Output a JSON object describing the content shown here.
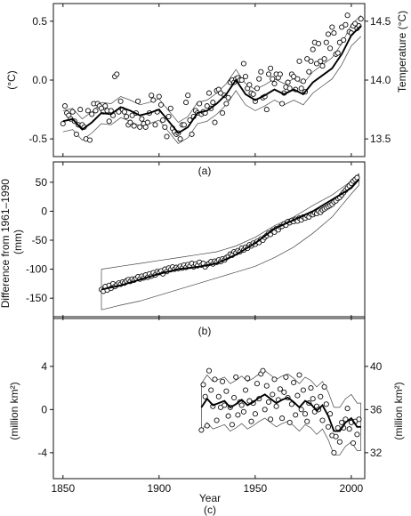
{
  "shared": {
    "xlabel": "Year",
    "xticks": [
      1850,
      1900,
      1950,
      2000
    ],
    "xlim": [
      1845,
      2007
    ]
  },
  "chart_data": [
    {
      "type": "scatter",
      "panel_label": "(a)",
      "ylabel": "(°C)",
      "ylabel_right": "Temperature (°C)",
      "ylim": [
        -0.65,
        0.65
      ],
      "yticks": [
        0.5,
        0.0,
        -0.5
      ],
      "ytick_labels": [
        "0.5",
        "0.0",
        "-0.5"
      ],
      "yticks_right": [
        14.5,
        14.0,
        13.5
      ],
      "ytick_right_labels": [
        "14.5",
        "14.0",
        "13.5"
      ],
      "right_offset": 14.0,
      "band_halfwidth": 0.09,
      "smooth_x": [
        1850,
        1855,
        1860,
        1865,
        1870,
        1875,
        1880,
        1885,
        1890,
        1895,
        1900,
        1905,
        1910,
        1915,
        1920,
        1925,
        1930,
        1935,
        1940,
        1945,
        1950,
        1955,
        1960,
        1965,
        1970,
        1975,
        1980,
        1985,
        1990,
        1995,
        2000,
        2005
      ],
      "smooth_y": [
        -0.35,
        -0.33,
        -0.42,
        -0.36,
        -0.28,
        -0.29,
        -0.23,
        -0.26,
        -0.3,
        -0.28,
        -0.25,
        -0.35,
        -0.45,
        -0.4,
        -0.28,
        -0.26,
        -0.2,
        -0.12,
        0.0,
        -0.12,
        -0.17,
        -0.13,
        -0.08,
        -0.12,
        -0.08,
        -0.12,
        -0.02,
        0.04,
        0.1,
        0.22,
        0.38,
        0.46
      ],
      "points_x": [
        1850,
        1851,
        1852,
        1853,
        1854,
        1855,
        1856,
        1857,
        1858,
        1859,
        1860,
        1861,
        1862,
        1863,
        1864,
        1865,
        1866,
        1867,
        1868,
        1869,
        1870,
        1871,
        1872,
        1873,
        1874,
        1875,
        1876,
        1877,
        1878,
        1879,
        1880,
        1881,
        1882,
        1883,
        1884,
        1885,
        1886,
        1887,
        1888,
        1889,
        1890,
        1891,
        1892,
        1893,
        1894,
        1895,
        1896,
        1897,
        1898,
        1899,
        1900,
        1901,
        1902,
        1903,
        1904,
        1905,
        1906,
        1907,
        1908,
        1909,
        1910,
        1911,
        1912,
        1913,
        1914,
        1915,
        1916,
        1917,
        1918,
        1919,
        1920,
        1921,
        1922,
        1923,
        1924,
        1925,
        1926,
        1927,
        1928,
        1929,
        1930,
        1931,
        1932,
        1933,
        1934,
        1935,
        1936,
        1937,
        1938,
        1939,
        1940,
        1941,
        1942,
        1943,
        1944,
        1945,
        1946,
        1947,
        1948,
        1949,
        1950,
        1951,
        1952,
        1953,
        1954,
        1955,
        1956,
        1957,
        1958,
        1959,
        1960,
        1961,
        1962,
        1963,
        1964,
        1965,
        1966,
        1967,
        1968,
        1969,
        1970,
        1971,
        1972,
        1973,
        1974,
        1975,
        1976,
        1977,
        1978,
        1979,
        1980,
        1981,
        1982,
        1983,
        1984,
        1985,
        1986,
        1987,
        1988,
        1989,
        1990,
        1991,
        1992,
        1993,
        1994,
        1995,
        1996,
        1997,
        1998,
        1999,
        2000,
        2001,
        2002,
        2003,
        2004,
        2005
      ],
      "points_y": [
        -0.37,
        -0.22,
        -0.28,
        -0.3,
        -0.33,
        -0.27,
        -0.35,
        -0.46,
        -0.38,
        -0.25,
        -0.38,
        -0.4,
        -0.5,
        -0.26,
        -0.51,
        -0.29,
        -0.2,
        -0.26,
        -0.2,
        -0.22,
        -0.24,
        -0.27,
        -0.22,
        -0.26,
        -0.35,
        -0.26,
        -0.3,
        0.03,
        0.05,
        -0.27,
        -0.18,
        -0.25,
        -0.27,
        -0.31,
        -0.38,
        -0.36,
        -0.3,
        -0.39,
        -0.28,
        -0.18,
        -0.4,
        -0.33,
        -0.37,
        -0.4,
        -0.36,
        -0.28,
        -0.13,
        -0.17,
        -0.38,
        -0.27,
        -0.14,
        -0.21,
        -0.34,
        -0.4,
        -0.48,
        -0.31,
        -0.24,
        -0.41,
        -0.44,
        -0.46,
        -0.45,
        -0.5,
        -0.38,
        -0.38,
        -0.19,
        -0.13,
        -0.34,
        -0.46,
        -0.31,
        -0.26,
        -0.28,
        -0.2,
        -0.29,
        -0.27,
        -0.28,
        -0.22,
        -0.11,
        -0.24,
        -0.19,
        -0.36,
        -0.09,
        -0.08,
        -0.11,
        -0.28,
        -0.13,
        -0.2,
        -0.15,
        -0.02,
        0.0,
        -0.02,
        0.01,
        0.02,
        0.0,
        0.0,
        0.14,
        0.03,
        -0.07,
        -0.04,
        -0.11,
        -0.12,
        -0.18,
        -0.07,
        0.01,
        0.07,
        -0.15,
        -0.14,
        -0.25,
        0.05,
        0.1,
        0.01,
        -0.03,
        0.05,
        0.02,
        0.05,
        -0.2,
        -0.11,
        -0.06,
        -0.02,
        -0.07,
        0.05,
        0.03,
        -0.08,
        0.01,
        0.16,
        -0.07,
        -0.01,
        -0.1,
        0.18,
        0.07,
        0.16,
        0.26,
        0.32,
        0.14,
        0.31,
        0.16,
        0.12,
        0.18,
        0.32,
        0.39,
        0.27,
        0.45,
        0.4,
        0.22,
        0.23,
        0.32,
        0.45,
        0.34,
        0.47,
        0.55,
        0.41,
        0.4,
        0.46,
        0.48,
        0.44,
        0.46,
        0.52
      ]
    },
    {
      "type": "scatter",
      "panel_label": "(b)",
      "ylabel": "Difference from 1961–1990\n(mm)",
      "ylim": [
        -185,
        85
      ],
      "yticks": [
        50,
        0,
        -50,
        -100,
        -150
      ],
      "ytick_labels": [
        "50",
        "0",
        "-50",
        "-100",
        "-150"
      ],
      "band_x": [
        1870,
        1880,
        1890,
        1900,
        1910,
        1920,
        1930,
        1940,
        1950,
        1960,
        1970,
        1980,
        1990,
        2000,
        2004
      ],
      "band_upper": [
        -100,
        -95,
        -90,
        -85,
        -80,
        -75,
        -70,
        -60,
        -45,
        -25,
        -10,
        10,
        28,
        52,
        65
      ],
      "band_lower": [
        -170,
        -162,
        -155,
        -145,
        -135,
        -125,
        -115,
        -105,
        -95,
        -80,
        -62,
        -38,
        -10,
        30,
        45
      ],
      "smooth_x": [
        1870,
        1880,
        1890,
        1900,
        1910,
        1920,
        1930,
        1940,
        1950,
        1960,
        1970,
        1980,
        1990,
        2000,
        2004
      ],
      "smooth_y": [
        -135,
        -128,
        -118,
        -108,
        -100,
        -96,
        -90,
        -75,
        -55,
        -30,
        -15,
        0,
        20,
        40,
        55
      ],
      "points_x": [
        1870,
        1871,
        1872,
        1873,
        1874,
        1875,
        1876,
        1877,
        1878,
        1879,
        1880,
        1881,
        1882,
        1883,
        1884,
        1885,
        1886,
        1887,
        1888,
        1889,
        1890,
        1891,
        1892,
        1893,
        1894,
        1895,
        1896,
        1897,
        1898,
        1899,
        1900,
        1901,
        1902,
        1903,
        1904,
        1905,
        1906,
        1907,
        1908,
        1909,
        1910,
        1911,
        1912,
        1913,
        1914,
        1915,
        1916,
        1917,
        1918,
        1919,
        1920,
        1921,
        1922,
        1923,
        1924,
        1925,
        1926,
        1927,
        1928,
        1929,
        1930,
        1931,
        1932,
        1933,
        1934,
        1935,
        1936,
        1937,
        1938,
        1939,
        1940,
        1941,
        1942,
        1943,
        1944,
        1945,
        1946,
        1947,
        1948,
        1949,
        1950,
        1951,
        1952,
        1953,
        1954,
        1955,
        1956,
        1957,
        1958,
        1959,
        1960,
        1961,
        1962,
        1963,
        1964,
        1965,
        1966,
        1967,
        1968,
        1969,
        1970,
        1971,
        1972,
        1973,
        1974,
        1975,
        1976,
        1977,
        1978,
        1979,
        1980,
        1981,
        1982,
        1983,
        1984,
        1985,
        1986,
        1987,
        1988,
        1989,
        1990,
        1991,
        1992,
        1993,
        1994,
        1995,
        1996,
        1997,
        1998,
        1999,
        2000,
        2001,
        2002,
        2003
      ],
      "points_y": [
        -135,
        -138,
        -130,
        -136,
        -128,
        -133,
        -125,
        -130,
        -127,
        -124,
        -126,
        -122,
        -124,
        -120,
        -118,
        -121,
        -117,
        -119,
        -116,
        -113,
        -117,
        -112,
        -115,
        -110,
        -114,
        -108,
        -112,
        -106,
        -110,
        -104,
        -106,
        -103,
        -108,
        -100,
        -104,
        -98,
        -101,
        -96,
        -100,
        -97,
        -99,
        -95,
        -98,
        -93,
        -97,
        -92,
        -95,
        -90,
        -96,
        -91,
        -94,
        -88,
        -93,
        -90,
        -96,
        -92,
        -90,
        -87,
        -91,
        -86,
        -88,
        -84,
        -87,
        -82,
        -84,
        -80,
        -78,
        -74,
        -76,
        -70,
        -72,
        -68,
        -70,
        -64,
        -67,
        -62,
        -64,
        -58,
        -60,
        -55,
        -57,
        -52,
        -54,
        -48,
        -50,
        -45,
        -42,
        -38,
        -40,
        -34,
        -36,
        -30,
        -32,
        -27,
        -26,
        -22,
        -24,
        -18,
        -20,
        -16,
        -18,
        -14,
        -17,
        -12,
        -15,
        -10,
        -12,
        -8,
        -10,
        -5,
        -6,
        -3,
        -4,
        0,
        -2,
        2,
        4,
        6,
        8,
        10,
        12,
        16,
        18,
        22,
        24,
        28,
        32,
        36,
        40,
        44,
        48,
        52,
        55,
        58
      ]
    },
    {
      "type": "scatter",
      "panel_label": "(c)",
      "ylabel": "(million km²)",
      "ylabel_right": "(million km²)",
      "ylim": [
        -6.4,
        8.6
      ],
      "yticks": [
        4,
        0,
        -4
      ],
      "ytick_labels": [
        "4",
        "0",
        "-4"
      ],
      "yticks_right": [
        40,
        36,
        32
      ],
      "ytick_right_labels": [
        "40",
        "36",
        "32"
      ],
      "right_offset": 36.0,
      "band_halfwidth": 2.2,
      "smooth_x": [
        1922,
        1925,
        1928,
        1931,
        1934,
        1937,
        1940,
        1943,
        1946,
        1949,
        1952,
        1955,
        1958,
        1961,
        1964,
        1967,
        1970,
        1973,
        1976,
        1979,
        1982,
        1985,
        1988,
        1991,
        1994,
        1997,
        2000,
        2003,
        2005
      ],
      "smooth_y": [
        0.2,
        1.0,
        0.4,
        0.6,
        0.8,
        0.2,
        0.5,
        0.9,
        0.4,
        0.7,
        1.1,
        1.4,
        1.0,
        0.6,
        0.9,
        1.1,
        0.7,
        0.2,
        0.8,
        0.5,
        -0.1,
        0.4,
        -0.6,
        -2.0,
        -2.0,
        -1.2,
        -0.8,
        -1.6,
        -1.6
      ],
      "points_x": [
        1922,
        1923,
        1924,
        1925,
        1926,
        1927,
        1928,
        1929,
        1930,
        1931,
        1932,
        1933,
        1934,
        1935,
        1936,
        1937,
        1938,
        1939,
        1940,
        1941,
        1942,
        1943,
        1944,
        1945,
        1946,
        1947,
        1948,
        1949,
        1950,
        1951,
        1952,
        1953,
        1954,
        1955,
        1956,
        1957,
        1958,
        1959,
        1960,
        1961,
        1962,
        1963,
        1964,
        1965,
        1966,
        1967,
        1968,
        1969,
        1970,
        1971,
        1972,
        1973,
        1974,
        1975,
        1976,
        1977,
        1978,
        1979,
        1980,
        1981,
        1982,
        1983,
        1984,
        1985,
        1986,
        1987,
        1988,
        1989,
        1990,
        1991,
        1992,
        1993,
        1994,
        1995,
        1996,
        1997,
        1998,
        1999,
        2000,
        2001,
        2002,
        2003,
        2004
      ],
      "points_y": [
        -1.9,
        2.3,
        1.2,
        -1.5,
        3.6,
        1.8,
        0.3,
        2.8,
        -1.0,
        1.2,
        0.2,
        2.6,
        0.4,
        1.7,
        -0.6,
        0.2,
        -1.4,
        1.1,
        3.0,
        -0.5,
        0.7,
        0.4,
        -0.2,
        1.8,
        2.9,
        0.8,
        -1.1,
        0.6,
        -0.4,
        2.4,
        1.0,
        3.3,
        3.6,
        0.0,
        2.2,
        0.7,
        -0.9,
        1.4,
        2.8,
        0.3,
        0.9,
        1.9,
        -0.8,
        1.6,
        3.0,
        1.1,
        -1.2,
        0.5,
        2.5,
        -0.5,
        1.3,
        3.2,
        0.0,
        1.8,
        -0.4,
        -1.1,
        0.6,
        2.0,
        1.0,
        -0.2,
        0.3,
        0.0,
        1.2,
        -1.0,
        2.1,
        0.5,
        -1.6,
        -0.4,
        -2.4,
        -4.0,
        -2.5,
        -1.7,
        -3.0,
        -1.2,
        -1.7,
        -0.9,
        0.1,
        -1.8,
        -1.2,
        -3.1,
        -1.1,
        -2.3,
        -0.9
      ]
    }
  ]
}
